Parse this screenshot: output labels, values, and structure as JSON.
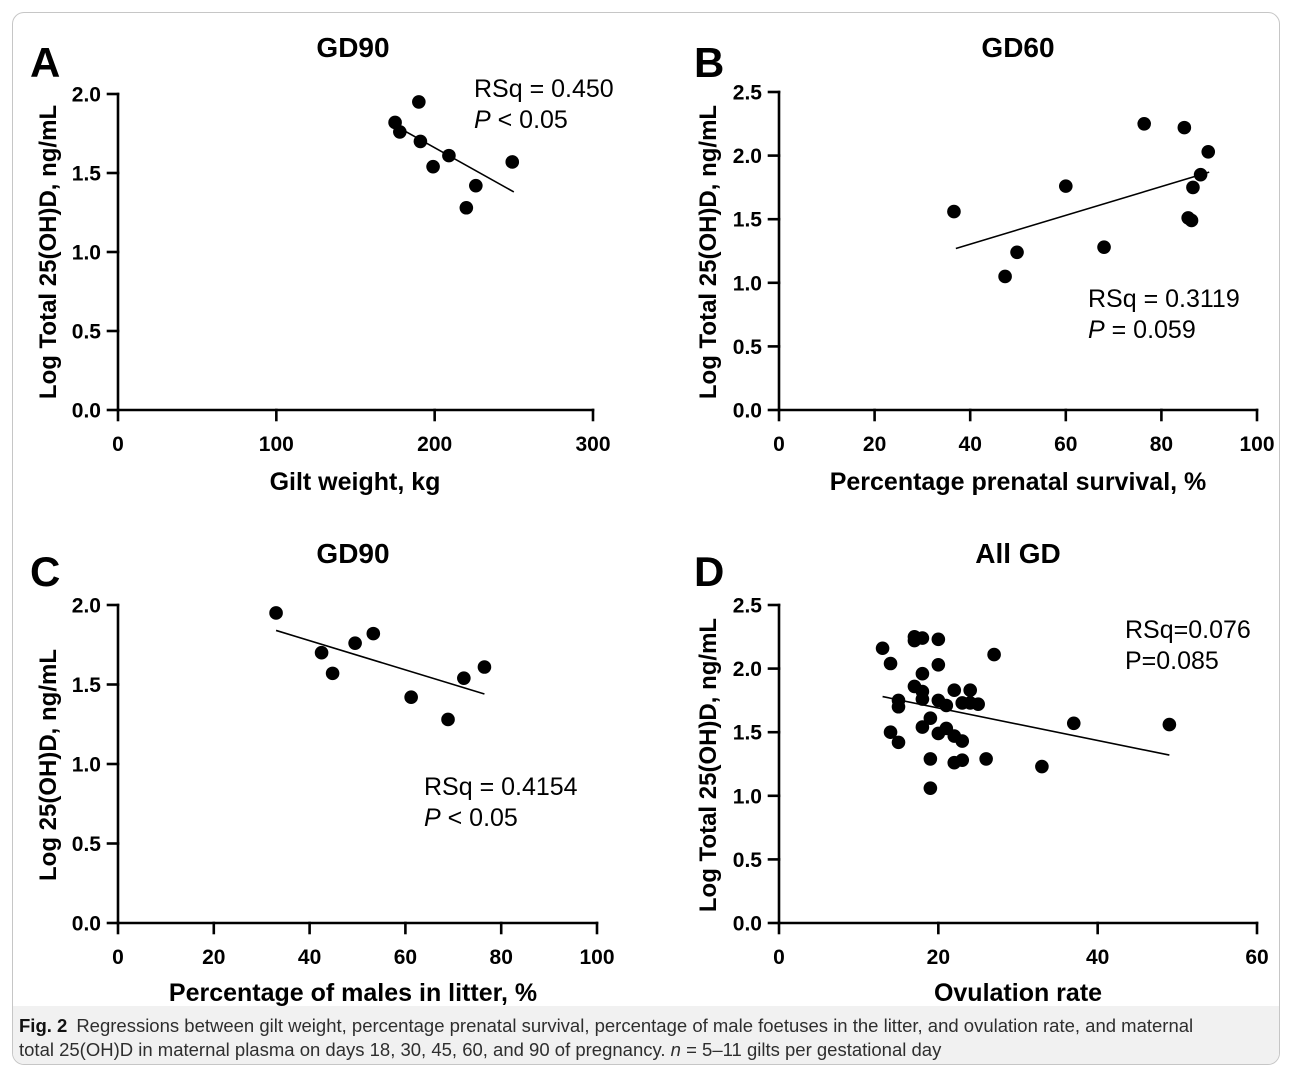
{
  "chart_data": [
    {
      "panel": "A",
      "type": "scatter",
      "title": "GD90",
      "xlabel": "Gilt weight, kg",
      "ylabel": "Log Total 25(OH)D, ng/mL",
      "xlim": [
        0,
        300
      ],
      "ylim": [
        0,
        2.0
      ],
      "xticks": [
        "0",
        "100",
        "200",
        "300"
      ],
      "yticks": [
        "0.0",
        "0.5",
        "1.0",
        "1.5",
        "2.0"
      ],
      "grid": false,
      "points": [
        [
          175,
          1.82
        ],
        [
          178,
          1.76
        ],
        [
          190,
          1.95
        ],
        [
          191,
          1.7
        ],
        [
          199,
          1.54
        ],
        [
          209,
          1.61
        ],
        [
          220,
          1.28
        ],
        [
          226,
          1.42
        ],
        [
          249,
          1.57
        ]
      ],
      "regression_line": [
        [
          175,
          1.8
        ],
        [
          250,
          1.38
        ]
      ],
      "annotation": [
        [
          {
            "text": "RSq = 0.450",
            "italic": false
          }
        ],
        [
          {
            "text": "P",
            "italic": true
          },
          {
            "text": " < 0.05",
            "italic": false
          }
        ]
      ]
    },
    {
      "panel": "B",
      "type": "scatter",
      "title": "GD60",
      "xlabel": "Percentage prenatal survival, %",
      "ylabel": "Log Total 25(OH)D, ng/mL",
      "xlim": [
        0,
        100
      ],
      "ylim": [
        0,
        2.5
      ],
      "xticks": [
        "0",
        "20",
        "40",
        "60",
        "80",
        "100"
      ],
      "yticks": [
        "0.0",
        "0.5",
        "1.0",
        "1.5",
        "2.0",
        "2.5"
      ],
      "grid": false,
      "points": [
        [
          36.6,
          1.56
        ],
        [
          47.3,
          1.05
        ],
        [
          49.8,
          1.24
        ],
        [
          60.0,
          1.76
        ],
        [
          68.0,
          1.28
        ],
        [
          76.4,
          2.25
        ],
        [
          84.8,
          2.22
        ],
        [
          85.6,
          1.51
        ],
        [
          86.3,
          1.49
        ],
        [
          86.6,
          1.75
        ],
        [
          88.2,
          1.85
        ],
        [
          89.8,
          2.03
        ]
      ],
      "regression_line": [
        [
          37,
          1.27
        ],
        [
          90,
          1.87
        ]
      ],
      "annotation": [
        [
          {
            "text": "RSq = 0.3119",
            "italic": false
          }
        ],
        [
          {
            "text": "P",
            "italic": true
          },
          {
            "text": " = 0.059",
            "italic": false
          }
        ]
      ]
    },
    {
      "panel": "C",
      "type": "scatter",
      "title": "GD90",
      "xlabel": "Percentage of males in litter, %",
      "ylabel": "Log 25(OH)D, ng/mL",
      "xlim": [
        0,
        100
      ],
      "ylim": [
        0,
        2.0
      ],
      "xticks": [
        "0",
        "20",
        "40",
        "60",
        "80",
        "100"
      ],
      "yticks": [
        "0.0",
        "0.5",
        "1.0",
        "1.5",
        "2.0"
      ],
      "grid": false,
      "points": [
        [
          33.0,
          1.95
        ],
        [
          42.5,
          1.7
        ],
        [
          44.8,
          1.57
        ],
        [
          49.5,
          1.76
        ],
        [
          53.3,
          1.82
        ],
        [
          61.2,
          1.42
        ],
        [
          68.9,
          1.28
        ],
        [
          72.2,
          1.54
        ],
        [
          76.5,
          1.61
        ]
      ],
      "regression_line": [
        [
          33,
          1.84
        ],
        [
          76.5,
          1.44
        ]
      ],
      "annotation": [
        [
          {
            "text": "RSq = 0.4154",
            "italic": false
          }
        ],
        [
          {
            "text": "P",
            "italic": true
          },
          {
            "text": " < 0.05",
            "italic": false
          }
        ]
      ]
    },
    {
      "panel": "D",
      "type": "scatter",
      "title": "All GD",
      "xlabel": "Ovulation rate",
      "ylabel": "Log Total 25(OH)D, ng/mL",
      "xlim": [
        0,
        60
      ],
      "ylim": [
        0,
        2.5
      ],
      "xticks": [
        "0",
        "20",
        "40",
        "60"
      ],
      "yticks": [
        "0.0",
        "0.5",
        "1.0",
        "1.5",
        "2.0",
        "2.5"
      ],
      "grid": false,
      "points": [
        [
          13,
          2.16
        ],
        [
          17,
          2.25
        ],
        [
          17,
          2.22
        ],
        [
          18,
          2.24
        ],
        [
          20,
          2.23
        ],
        [
          27,
          2.11
        ],
        [
          14,
          2.04
        ],
        [
          20,
          2.03
        ],
        [
          18,
          1.96
        ],
        [
          17,
          1.86
        ],
        [
          18,
          1.82
        ],
        [
          22,
          1.83
        ],
        [
          24,
          1.83
        ],
        [
          15,
          1.75
        ],
        [
          18,
          1.76
        ],
        [
          20,
          1.75
        ],
        [
          15,
          1.7
        ],
        [
          21,
          1.71
        ],
        [
          23,
          1.73
        ],
        [
          24,
          1.73
        ],
        [
          25,
          1.72
        ],
        [
          19,
          1.61
        ],
        [
          18,
          1.54
        ],
        [
          21,
          1.53
        ],
        [
          14,
          1.5
        ],
        [
          20,
          1.49
        ],
        [
          22,
          1.47
        ],
        [
          37,
          1.57
        ],
        [
          49,
          1.56
        ],
        [
          15,
          1.42
        ],
        [
          23,
          1.43
        ],
        [
          19,
          1.29
        ],
        [
          22,
          1.26
        ],
        [
          23,
          1.28
        ],
        [
          26,
          1.29
        ],
        [
          33,
          1.23
        ],
        [
          19,
          1.06
        ]
      ],
      "regression_line": [
        [
          13,
          1.78
        ],
        [
          49,
          1.32
        ]
      ],
      "annotation": [
        [
          {
            "text": "RSq=0.076",
            "italic": false
          }
        ],
        [
          {
            "text": "P=0.085",
            "italic": false
          }
        ]
      ]
    }
  ],
  "caption": {
    "label": "Fig. 2",
    "line1": "Regressions between gilt weight, percentage prenatal survival, percentage of male foetuses in the litter, and ovulation rate, and maternal",
    "line2_start": "total 25(OH)D in maternal plasma on days 18, 30, 45, 60, and 90 of pregnancy. ",
    "n_symbol": "n",
    "line2_end": " = 5–11 gilts per gestational day"
  }
}
